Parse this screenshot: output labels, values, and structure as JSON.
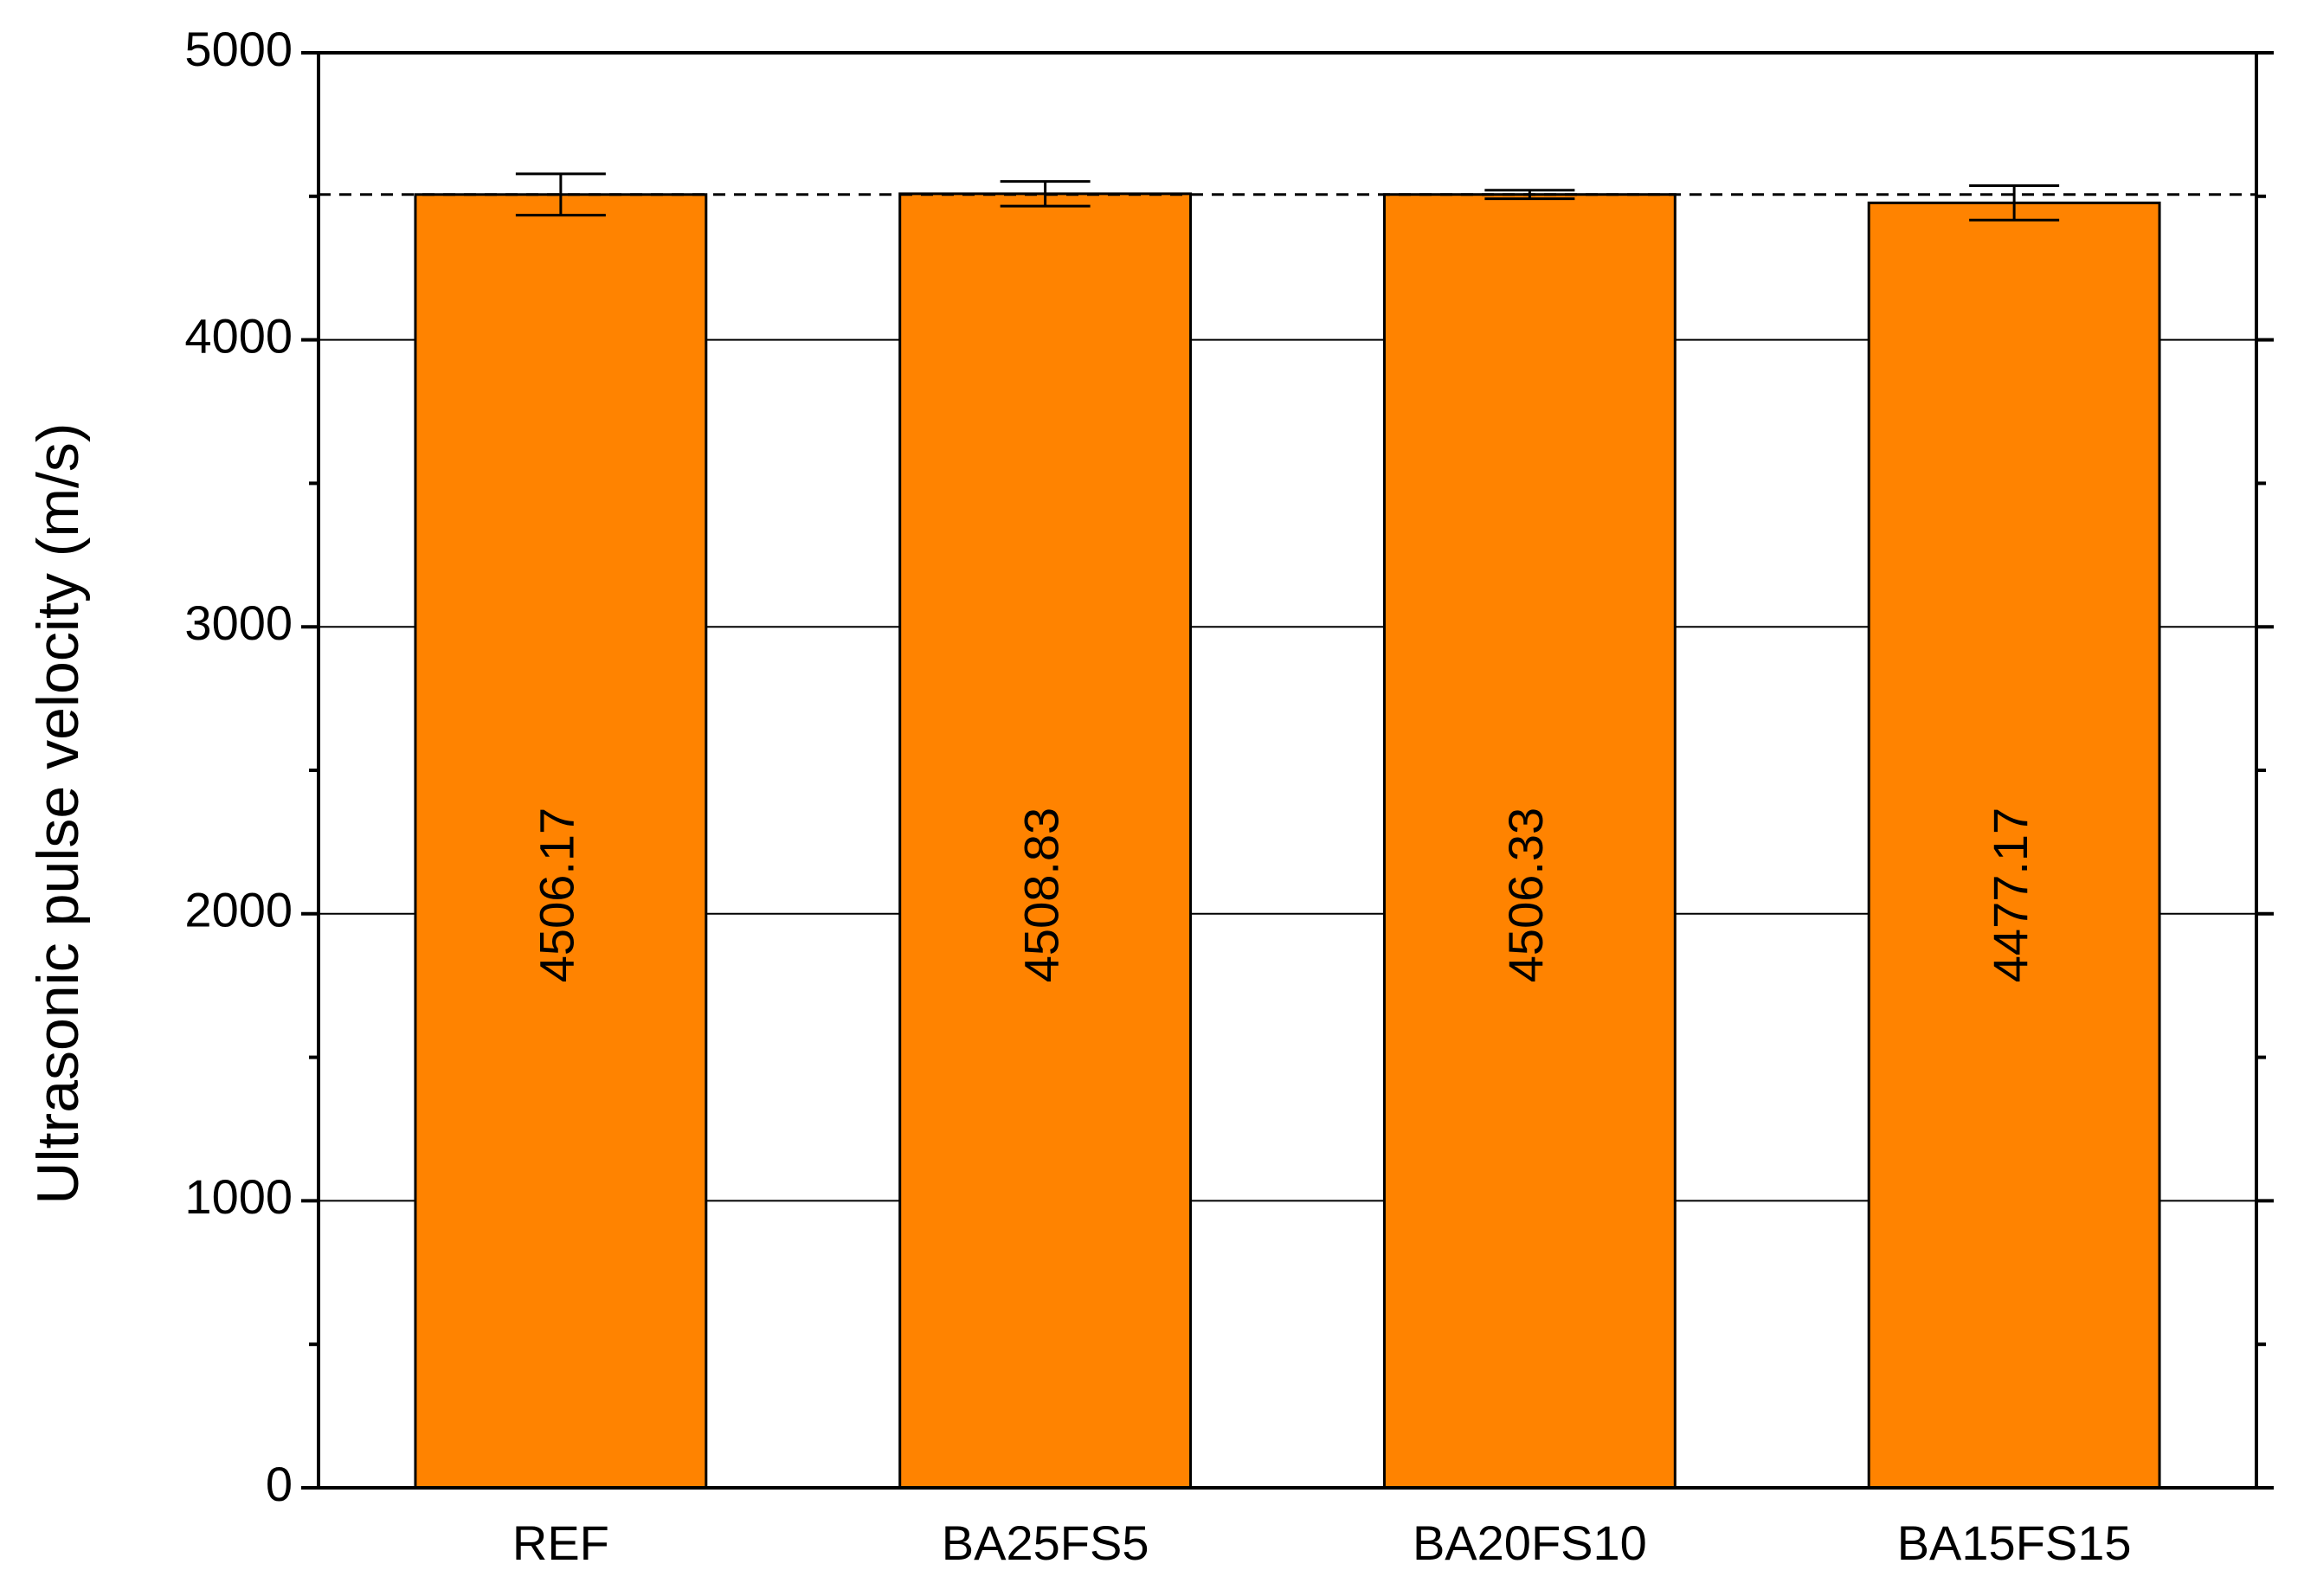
{
  "chart_data": {
    "type": "bar",
    "y_label": "Ultrasonic pulse velocity (m/s)",
    "categories": [
      "REF",
      "BA25FS5",
      "BA20FS10",
      "BA15FS15"
    ],
    "values": [
      4506.17,
      4508.83,
      4506.33,
      4477.17
    ],
    "errors": [
      72,
      43,
      15,
      60
    ],
    "color": "#ff8300",
    "ylim": [
      0,
      5000
    ],
    "yticks": [
      0,
      1000,
      2000,
      3000,
      4000,
      5000
    ],
    "minor_yticks": [
      500,
      1500,
      2500,
      3500,
      4500
    ],
    "grid": true,
    "reference_line": 4506.17
  }
}
